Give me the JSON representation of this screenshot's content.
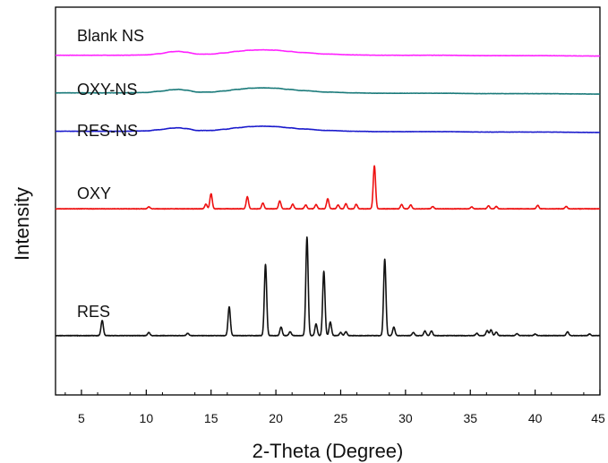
{
  "chart_data": {
    "type": "line",
    "title": "",
    "xlabel": "2-Theta (Degree)",
    "ylabel": "Intensity",
    "xlim": [
      3,
      45
    ],
    "ylim": [
      0,
      100
    ],
    "x_ticks": [
      5,
      10,
      15,
      20,
      25,
      30,
      35,
      40,
      45
    ],
    "grid": false,
    "legend": "none",
    "series": [
      {
        "name": "Blank NS",
        "color": "#ff22ff",
        "x": [
          3,
          5,
          8,
          10,
          11,
          12,
          12.5,
          13,
          14,
          15,
          16,
          17,
          18,
          19,
          20,
          21,
          22,
          24,
          26,
          28,
          30,
          33,
          36,
          40,
          45
        ],
        "y": [
          87.6,
          87.6,
          87.6,
          87.7,
          88.0,
          88.5,
          88.6,
          88.4,
          87.9,
          87.9,
          88.2,
          88.6,
          88.9,
          89.0,
          88.9,
          88.6,
          88.3,
          87.9,
          87.7,
          87.6,
          87.6,
          87.6,
          87.5,
          87.5,
          87.4
        ]
      },
      {
        "name": "OXY-NS",
        "color": "#1a7a7a",
        "x": [
          3,
          5,
          8,
          10,
          11,
          12,
          12.5,
          13,
          14,
          15,
          16,
          17,
          18,
          19,
          20,
          21,
          22,
          24,
          26,
          28,
          30,
          33,
          36,
          40,
          45
        ],
        "y": [
          77.9,
          77.9,
          77.9,
          78.0,
          78.3,
          78.7,
          78.8,
          78.6,
          78.1,
          78.1,
          78.4,
          78.8,
          79.1,
          79.2,
          79.1,
          78.8,
          78.5,
          78.1,
          77.9,
          77.8,
          77.8,
          77.8,
          77.7,
          77.7,
          77.6
        ]
      },
      {
        "name": "RES-NS",
        "color": "#1a1acc",
        "x": [
          3,
          5,
          8,
          10,
          11,
          12,
          12.5,
          13,
          14,
          15,
          16,
          17,
          18,
          19,
          20,
          21,
          22,
          24,
          26,
          28,
          30,
          33,
          36,
          40,
          45
        ],
        "y": [
          68.0,
          68.0,
          68.0,
          68.1,
          68.4,
          68.8,
          68.9,
          68.7,
          68.2,
          68.2,
          68.5,
          68.9,
          69.2,
          69.3,
          69.2,
          68.9,
          68.6,
          68.2,
          68.0,
          67.9,
          67.9,
          67.9,
          67.8,
          67.8,
          67.7
        ]
      },
      {
        "name": "OXY",
        "color": "#ee1111",
        "baseline": 48.0,
        "peaks": [
          [
            10.2,
            0.5
          ],
          [
            14.6,
            1.2
          ],
          [
            15.0,
            3.9
          ],
          [
            17.8,
            3.1
          ],
          [
            19.0,
            1.5
          ],
          [
            20.3,
            2.0
          ],
          [
            21.3,
            1.2
          ],
          [
            22.3,
            1.0
          ],
          [
            23.1,
            1.1
          ],
          [
            24.0,
            2.6
          ],
          [
            24.8,
            1.0
          ],
          [
            25.4,
            1.3
          ],
          [
            26.2,
            1.2
          ],
          [
            27.6,
            11.1
          ],
          [
            29.7,
            1.1
          ],
          [
            30.4,
            1.0
          ],
          [
            32.1,
            0.6
          ],
          [
            35.1,
            0.5
          ],
          [
            36.4,
            0.8
          ],
          [
            37.0,
            0.6
          ],
          [
            40.2,
            0.9
          ],
          [
            42.4,
            0.6
          ]
        ]
      },
      {
        "name": "RES",
        "color": "#111111",
        "baseline": 15.3,
        "peaks": [
          [
            6.6,
            3.9
          ],
          [
            10.2,
            0.8
          ],
          [
            13.2,
            0.6
          ],
          [
            16.4,
            7.4
          ],
          [
            19.2,
            18.4
          ],
          [
            20.4,
            2.2
          ],
          [
            21.1,
            1.0
          ],
          [
            22.4,
            25.4
          ],
          [
            23.1,
            3.0
          ],
          [
            23.7,
            16.6
          ],
          [
            24.2,
            3.5
          ],
          [
            25.0,
            0.8
          ],
          [
            25.4,
            1.0
          ],
          [
            28.4,
            19.7
          ],
          [
            29.1,
            2.2
          ],
          [
            30.6,
            0.8
          ],
          [
            31.5,
            1.2
          ],
          [
            32.0,
            1.2
          ],
          [
            35.5,
            0.6
          ],
          [
            36.3,
            1.3
          ],
          [
            36.6,
            1.5
          ],
          [
            37.0,
            0.9
          ],
          [
            38.6,
            0.5
          ],
          [
            40.0,
            0.4
          ],
          [
            42.5,
            1.0
          ],
          [
            44.2,
            0.4
          ]
        ]
      }
    ]
  }
}
